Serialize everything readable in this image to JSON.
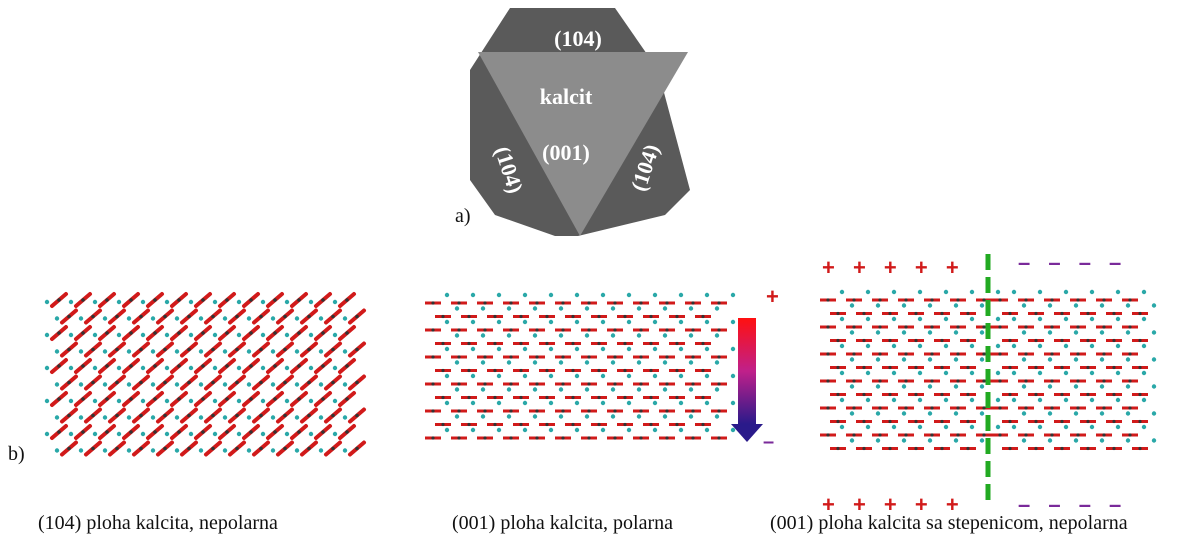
{
  "crystal": {
    "name": "kalcit",
    "top_face": "(104)",
    "left_face": "(104)",
    "right_face": "(104)",
    "center_face": "(001)",
    "colors": {
      "outer": "#5a5a5a",
      "inner": "#8c8c8c",
      "label": "#ffffff"
    }
  },
  "labels": {
    "part_a": "a)",
    "part_b": "b)"
  },
  "panels": [
    {
      "caption": "(104) ploha kalcita,  nepolarna"
    },
    {
      "caption": "(001) ploha kalcita,  polarna",
      "pole_top": "+",
      "pole_bottom": "–"
    },
    {
      "caption": "(001) ploha kalcita sa stepenicom, nepolarna",
      "plus_row": "+ + + + +",
      "minus_row": "– – – –"
    }
  ],
  "colors": {
    "oxygen": "#d11a1a",
    "carbon": "#333333",
    "calcium": "#2aa8a8",
    "step_line": "#22aa22",
    "plus": "#d11a1a",
    "minus": "#7a2a9a",
    "arrow_top": "#ff1010",
    "arrow_bottom": "#2a1a8a"
  }
}
